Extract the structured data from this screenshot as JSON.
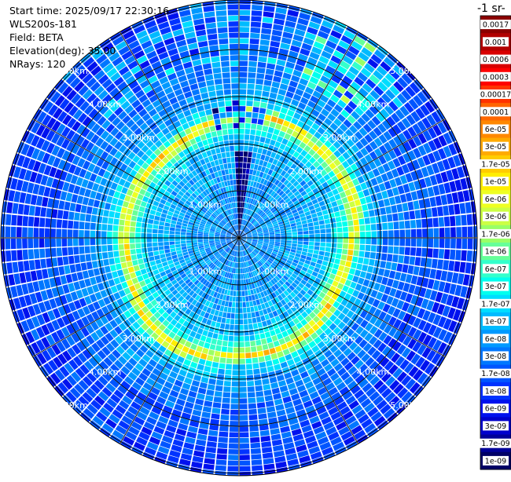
{
  "header": {
    "start_time": "Start time: 2025/09/17 22:30:16",
    "instrument": "WLS200s-181",
    "field": "Field: BETA",
    "elevation": "Elevation(deg): 35.00",
    "nrays": "NRays: 120"
  },
  "colorbar": {
    "title": "-1 sr-",
    "labels": [
      "0.0017",
      "0.001",
      "0.0006",
      "0.0003",
      "0.00017",
      "0.0001",
      "6e-05",
      "3e-05",
      "1.7e-05",
      "1e-05",
      "6e-06",
      "3e-06",
      "1.7e-06",
      "1e-06",
      "6e-07",
      "3e-07",
      "1.7e-07",
      "1e-07",
      "6e-08",
      "3e-08",
      "1.7e-08",
      "1e-08",
      "6e-09",
      "3e-09",
      "1.7e-09",
      "1e-09"
    ],
    "colors": [
      "#8b0000",
      "#b20000",
      "#d90000",
      "#ff0000",
      "#ff3300",
      "#ff6600",
      "#ff8800",
      "#ffaa00",
      "#ffcc00",
      "#ffee00",
      "#eeff22",
      "#ccff44",
      "#99ff66",
      "#66ff99",
      "#33ffcc",
      "#00ffee",
      "#00ddff",
      "#00bbff",
      "#0099ff",
      "#0077ff",
      "#0055ff",
      "#0033ff",
      "#0011ee",
      "#0000cc",
      "#000099",
      "#000066"
    ]
  },
  "chart_data": {
    "type": "heatmap",
    "projection": "polar (PPI scan)",
    "field": "BETA",
    "elevation_deg": 35.0,
    "n_rays": 120,
    "range_rings_km": [
      1.0,
      2.0,
      3.0,
      4.0,
      5.0
    ],
    "ring_labels": [
      "1.00km",
      "2.00km",
      "3.00km",
      "4.00km",
      "5.00km"
    ],
    "grid": true,
    "colorscale": "jet (log)",
    "value_range": [
      1e-09,
      0.0017
    ],
    "profile_by_range_km": {
      "range_km": [
        0.0,
        0.5,
        1.0,
        1.5,
        2.0,
        2.2,
        2.4,
        2.55,
        2.7,
        3.0,
        3.5,
        4.0,
        5.0
      ],
      "beta": [
        3e-08,
        5e-08,
        6e-08,
        7e-08,
        1e-07,
        2e-07,
        1e-06,
        1.7e-05,
        3e-07,
        6e-08,
        3e-08,
        1.7e-08,
        1e-08
      ]
    },
    "features": [
      "bright ring near 2.4–2.6 km range (yellow/orange, up to ~3e-05)",
      "dark blue streak toward north near centre",
      "light cyan patches at 4–5 km range toward north"
    ]
  }
}
